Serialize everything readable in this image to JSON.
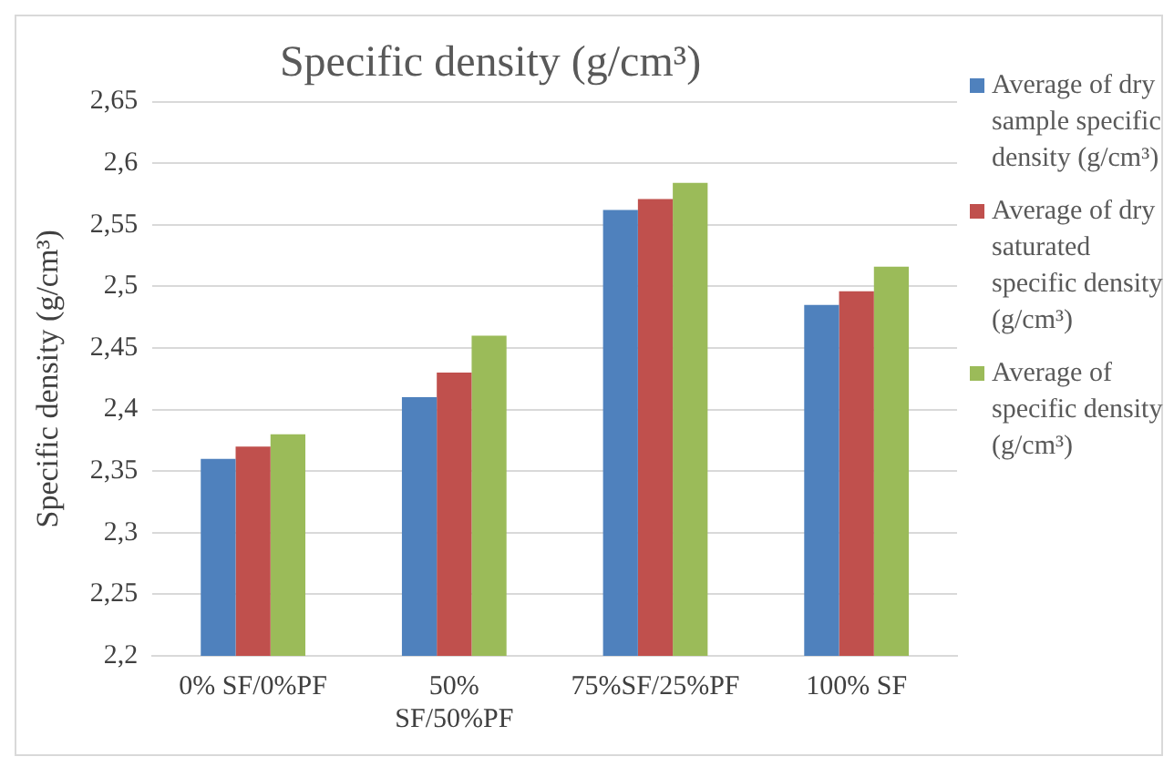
{
  "chart_data": {
    "type": "bar",
    "title": "Specific density (g/cm³)",
    "ylabel": "Specific density (g/cm³)",
    "categories": [
      "0% SF/0%PF",
      "50% SF/50%PF",
      "75%SF/25%PF",
      "100% SF"
    ],
    "series": [
      {
        "name": "Average of dry sample specific density (g/cm³)",
        "color": "#4f81bd",
        "values": [
          2.36,
          2.41,
          2.562,
          2.485
        ]
      },
      {
        "name": "Average of dry saturated specific density (g/cm³)",
        "color": "#c0504d",
        "values": [
          2.37,
          2.43,
          2.571,
          2.496
        ]
      },
      {
        "name": "Average of specific density (g/cm³)",
        "color": "#9bbb59",
        "values": [
          2.38,
          2.46,
          2.584,
          2.516
        ]
      }
    ],
    "ylim": [
      2.2,
      2.65
    ],
    "yticks": [
      {
        "value": 2.2,
        "label": "2,2"
      },
      {
        "value": 2.25,
        "label": "2,25"
      },
      {
        "value": 2.3,
        "label": "2,3"
      },
      {
        "value": 2.35,
        "label": "2,35"
      },
      {
        "value": 2.4,
        "label": "2,4"
      },
      {
        "value": 2.45,
        "label": "2,45"
      },
      {
        "value": 2.5,
        "label": "2,5"
      },
      {
        "value": 2.55,
        "label": "2,55"
      },
      {
        "value": 2.6,
        "label": "2,6"
      },
      {
        "value": 2.65,
        "label": "2,65"
      }
    ],
    "grid": "y",
    "legend": "right"
  }
}
